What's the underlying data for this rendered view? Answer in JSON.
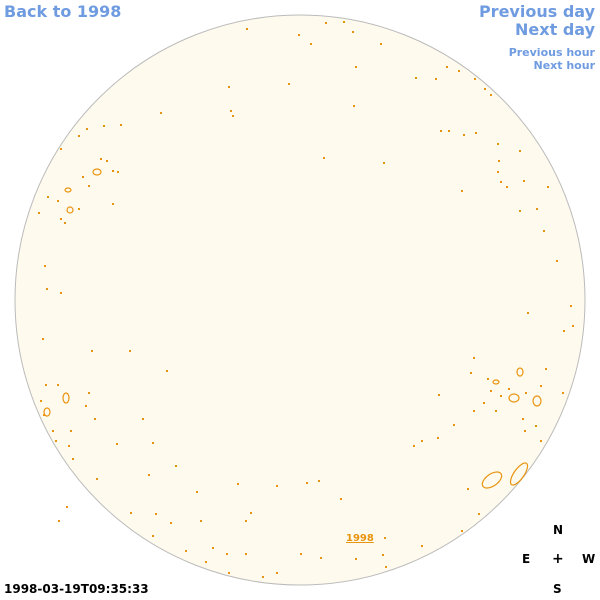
{
  "nav": {
    "back": "Back to 1998",
    "previous_day": "Previous day",
    "next_day": "Next day",
    "previous_hour": "Previous hour",
    "next_hour": "Next hour"
  },
  "compass": {
    "north": "N",
    "east": "E",
    "center": "+",
    "west": "W",
    "south": "S"
  },
  "timestamp": "1998-03-19T09:35:33",
  "disk_link": "1998",
  "colors": {
    "link": "#6f9be0",
    "contour": "#e8940f",
    "disk_fill": "#fffaee",
    "disk_edge": "#bbbbbb"
  }
}
